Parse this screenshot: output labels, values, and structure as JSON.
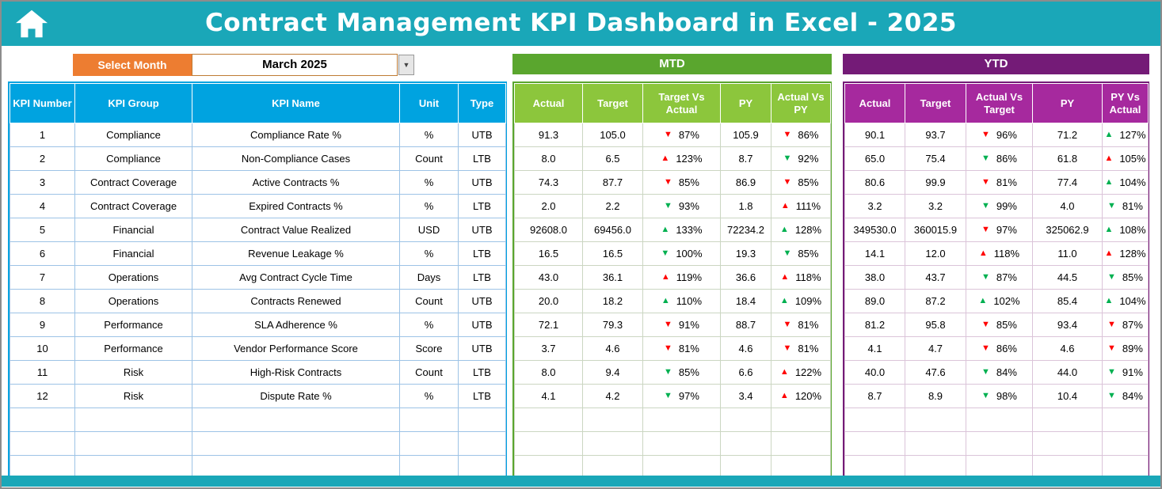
{
  "header": {
    "title": "Contract Management KPI Dashboard in Excel - 2025"
  },
  "controls": {
    "select_month_label": "Select Month",
    "selected_month": "March 2025",
    "dropdown_icon": "▼"
  },
  "sections": {
    "mtd_title": "MTD",
    "ytd_title": "YTD"
  },
  "colors": {
    "teal": "#1AA7B8",
    "orange": "#ED7D31",
    "blue": "#00A3E0",
    "green_banner": "#5AA62E",
    "green_header": "#8CC63C",
    "purple_banner": "#741B77",
    "purple_header": "#A6299E",
    "arrow_red": "#FF0000",
    "arrow_green": "#00B050"
  },
  "kpi_table_headers": [
    "KPI Number",
    "KPI Group",
    "KPI Name",
    "Unit",
    "Type"
  ],
  "mtd_headers": [
    "Actual",
    "Target",
    "Target Vs Actual",
    "PY",
    "Actual Vs PY"
  ],
  "ytd_headers": [
    "Actual",
    "Target",
    "Actual Vs Target",
    "PY",
    "PY Vs Actual"
  ],
  "empty_rows": 3,
  "rows": [
    {
      "num": "1",
      "group": "Compliance",
      "name": "Compliance Rate %",
      "unit": "%",
      "type": "UTB",
      "mtd": {
        "actual": "91.3",
        "target": "105.0",
        "target_vs_actual": {
          "pct": "87%",
          "dir": "down",
          "color": "red"
        },
        "py": "105.9",
        "actual_vs_py": {
          "pct": "86%",
          "dir": "down",
          "color": "red"
        }
      },
      "ytd": {
        "actual": "90.1",
        "target": "93.7",
        "actual_vs_target": {
          "pct": "96%",
          "dir": "down",
          "color": "red"
        },
        "py": "71.2",
        "py_vs_actual": {
          "pct": "127%",
          "dir": "up",
          "color": "green"
        }
      }
    },
    {
      "num": "2",
      "group": "Compliance",
      "name": "Non-Compliance Cases",
      "unit": "Count",
      "type": "LTB",
      "mtd": {
        "actual": "8.0",
        "target": "6.5",
        "target_vs_actual": {
          "pct": "123%",
          "dir": "up",
          "color": "red"
        },
        "py": "8.7",
        "actual_vs_py": {
          "pct": "92%",
          "dir": "down",
          "color": "green"
        }
      },
      "ytd": {
        "actual": "65.0",
        "target": "75.4",
        "actual_vs_target": {
          "pct": "86%",
          "dir": "down",
          "color": "green"
        },
        "py": "61.8",
        "py_vs_actual": {
          "pct": "105%",
          "dir": "up",
          "color": "red"
        }
      }
    },
    {
      "num": "3",
      "group": "Contract Coverage",
      "name": "Active Contracts %",
      "unit": "%",
      "type": "UTB",
      "mtd": {
        "actual": "74.3",
        "target": "87.7",
        "target_vs_actual": {
          "pct": "85%",
          "dir": "down",
          "color": "red"
        },
        "py": "86.9",
        "actual_vs_py": {
          "pct": "85%",
          "dir": "down",
          "color": "red"
        }
      },
      "ytd": {
        "actual": "80.6",
        "target": "99.9",
        "actual_vs_target": {
          "pct": "81%",
          "dir": "down",
          "color": "red"
        },
        "py": "77.4",
        "py_vs_actual": {
          "pct": "104%",
          "dir": "up",
          "color": "green"
        }
      }
    },
    {
      "num": "4",
      "group": "Contract Coverage",
      "name": "Expired Contracts %",
      "unit": "%",
      "type": "LTB",
      "mtd": {
        "actual": "2.0",
        "target": "2.2",
        "target_vs_actual": {
          "pct": "93%",
          "dir": "down",
          "color": "green"
        },
        "py": "1.8",
        "actual_vs_py": {
          "pct": "111%",
          "dir": "up",
          "color": "red"
        }
      },
      "ytd": {
        "actual": "3.2",
        "target": "3.2",
        "actual_vs_target": {
          "pct": "99%",
          "dir": "down",
          "color": "green"
        },
        "py": "4.0",
        "py_vs_actual": {
          "pct": "81%",
          "dir": "down",
          "color": "green"
        }
      }
    },
    {
      "num": "5",
      "group": "Financial",
      "name": "Contract Value Realized",
      "unit": "USD",
      "type": "UTB",
      "mtd": {
        "actual": "92608.0",
        "target": "69456.0",
        "target_vs_actual": {
          "pct": "133%",
          "dir": "up",
          "color": "green"
        },
        "py": "72234.2",
        "actual_vs_py": {
          "pct": "128%",
          "dir": "up",
          "color": "green"
        }
      },
      "ytd": {
        "actual": "349530.0",
        "target": "360015.9",
        "actual_vs_target": {
          "pct": "97%",
          "dir": "down",
          "color": "red"
        },
        "py": "325062.9",
        "py_vs_actual": {
          "pct": "108%",
          "dir": "up",
          "color": "green"
        }
      }
    },
    {
      "num": "6",
      "group": "Financial",
      "name": "Revenue Leakage %",
      "unit": "%",
      "type": "LTB",
      "mtd": {
        "actual": "16.5",
        "target": "16.5",
        "target_vs_actual": {
          "pct": "100%",
          "dir": "down",
          "color": "green"
        },
        "py": "19.3",
        "actual_vs_py": {
          "pct": "85%",
          "dir": "down",
          "color": "green"
        }
      },
      "ytd": {
        "actual": "14.1",
        "target": "12.0",
        "actual_vs_target": {
          "pct": "118%",
          "dir": "up",
          "color": "red"
        },
        "py": "11.0",
        "py_vs_actual": {
          "pct": "128%",
          "dir": "up",
          "color": "red"
        }
      }
    },
    {
      "num": "7",
      "group": "Operations",
      "name": "Avg Contract Cycle Time",
      "unit": "Days",
      "type": "LTB",
      "mtd": {
        "actual": "43.0",
        "target": "36.1",
        "target_vs_actual": {
          "pct": "119%",
          "dir": "up",
          "color": "red"
        },
        "py": "36.6",
        "actual_vs_py": {
          "pct": "118%",
          "dir": "up",
          "color": "red"
        }
      },
      "ytd": {
        "actual": "38.0",
        "target": "43.7",
        "actual_vs_target": {
          "pct": "87%",
          "dir": "down",
          "color": "green"
        },
        "py": "44.5",
        "py_vs_actual": {
          "pct": "85%",
          "dir": "down",
          "color": "green"
        }
      }
    },
    {
      "num": "8",
      "group": "Operations",
      "name": "Contracts Renewed",
      "unit": "Count",
      "type": "UTB",
      "mtd": {
        "actual": "20.0",
        "target": "18.2",
        "target_vs_actual": {
          "pct": "110%",
          "dir": "up",
          "color": "green"
        },
        "py": "18.4",
        "actual_vs_py": {
          "pct": "109%",
          "dir": "up",
          "color": "green"
        }
      },
      "ytd": {
        "actual": "89.0",
        "target": "87.2",
        "actual_vs_target": {
          "pct": "102%",
          "dir": "up",
          "color": "green"
        },
        "py": "85.4",
        "py_vs_actual": {
          "pct": "104%",
          "dir": "up",
          "color": "green"
        }
      }
    },
    {
      "num": "9",
      "group": "Performance",
      "name": "SLA Adherence %",
      "unit": "%",
      "type": "UTB",
      "mtd": {
        "actual": "72.1",
        "target": "79.3",
        "target_vs_actual": {
          "pct": "91%",
          "dir": "down",
          "color": "red"
        },
        "py": "88.7",
        "actual_vs_py": {
          "pct": "81%",
          "dir": "down",
          "color": "red"
        }
      },
      "ytd": {
        "actual": "81.2",
        "target": "95.8",
        "actual_vs_target": {
          "pct": "85%",
          "dir": "down",
          "color": "red"
        },
        "py": "93.4",
        "py_vs_actual": {
          "pct": "87%",
          "dir": "down",
          "color": "red"
        }
      }
    },
    {
      "num": "10",
      "group": "Performance",
      "name": "Vendor Performance Score",
      "unit": "Score",
      "type": "UTB",
      "mtd": {
        "actual": "3.7",
        "target": "4.6",
        "target_vs_actual": {
          "pct": "81%",
          "dir": "down",
          "color": "red"
        },
        "py": "4.6",
        "actual_vs_py": {
          "pct": "81%",
          "dir": "down",
          "color": "red"
        }
      },
      "ytd": {
        "actual": "4.1",
        "target": "4.7",
        "actual_vs_target": {
          "pct": "86%",
          "dir": "down",
          "color": "red"
        },
        "py": "4.6",
        "py_vs_actual": {
          "pct": "89%",
          "dir": "down",
          "color": "red"
        }
      }
    },
    {
      "num": "11",
      "group": "Risk",
      "name": "High-Risk Contracts",
      "unit": "Count",
      "type": "LTB",
      "mtd": {
        "actual": "8.0",
        "target": "9.4",
        "target_vs_actual": {
          "pct": "85%",
          "dir": "down",
          "color": "green"
        },
        "py": "6.6",
        "actual_vs_py": {
          "pct": "122%",
          "dir": "up",
          "color": "red"
        }
      },
      "ytd": {
        "actual": "40.0",
        "target": "47.6",
        "actual_vs_target": {
          "pct": "84%",
          "dir": "down",
          "color": "green"
        },
        "py": "44.0",
        "py_vs_actual": {
          "pct": "91%",
          "dir": "down",
          "color": "green"
        }
      }
    },
    {
      "num": "12",
      "group": "Risk",
      "name": "Dispute Rate %",
      "unit": "%",
      "type": "LTB",
      "mtd": {
        "actual": "4.1",
        "target": "4.2",
        "target_vs_actual": {
          "pct": "97%",
          "dir": "down",
          "color": "green"
        },
        "py": "3.4",
        "actual_vs_py": {
          "pct": "120%",
          "dir": "up",
          "color": "red"
        }
      },
      "ytd": {
        "actual": "8.7",
        "target": "8.9",
        "actual_vs_target": {
          "pct": "98%",
          "dir": "down",
          "color": "green"
        },
        "py": "10.4",
        "py_vs_actual": {
          "pct": "84%",
          "dir": "down",
          "color": "green"
        }
      }
    }
  ]
}
